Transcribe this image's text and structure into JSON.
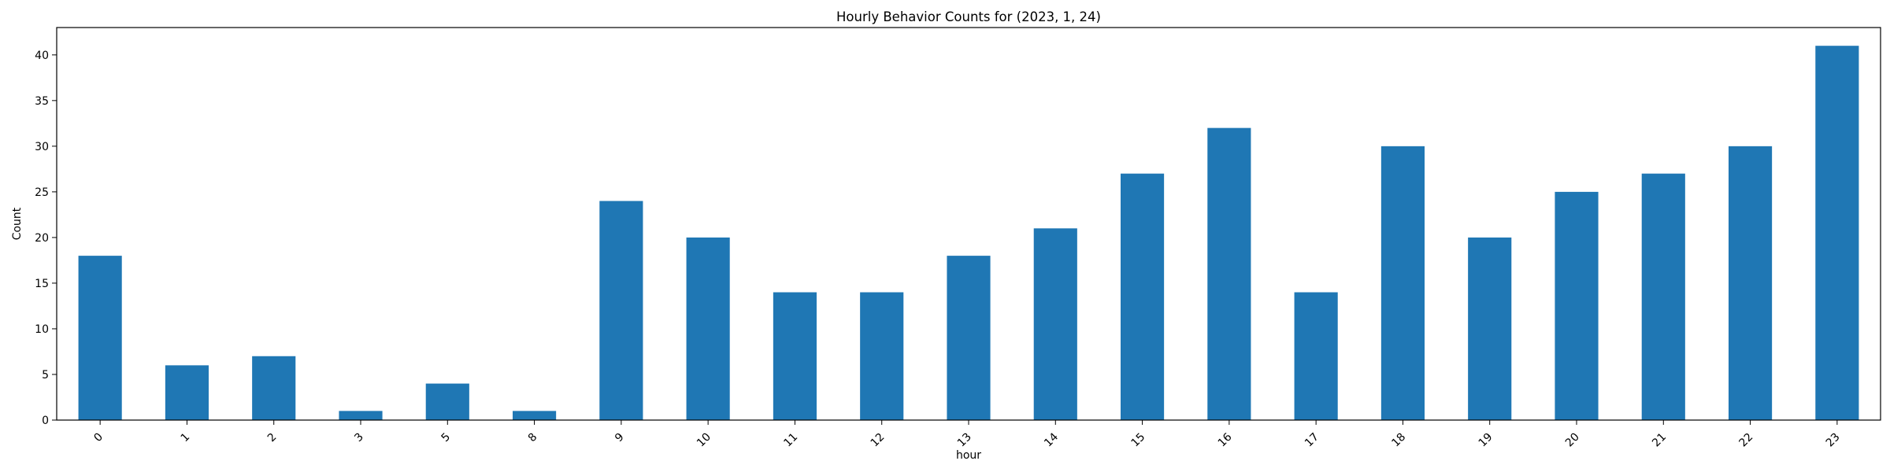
{
  "chart_data": {
    "type": "bar",
    "title": "Hourly Behavior Counts for (2023, 1, 24)",
    "xlabel": "hour",
    "ylabel": "Count",
    "categories": [
      "0",
      "1",
      "2",
      "3",
      "5",
      "8",
      "9",
      "10",
      "11",
      "12",
      "13",
      "14",
      "15",
      "16",
      "17",
      "18",
      "19",
      "20",
      "21",
      "22",
      "23"
    ],
    "values": [
      18,
      6,
      7,
      1,
      4,
      1,
      24,
      20,
      14,
      14,
      18,
      21,
      27,
      32,
      14,
      30,
      20,
      25,
      27,
      30,
      41
    ],
    "ylim": [
      0,
      43
    ],
    "yticks": [
      0,
      5,
      10,
      15,
      20,
      25,
      30,
      35,
      40
    ],
    "bar_color": "#1f77b4",
    "grid": false,
    "legend": "none"
  }
}
